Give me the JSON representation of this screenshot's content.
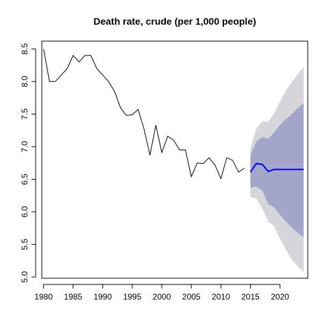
{
  "chart_data": {
    "type": "line",
    "title": "Death rate, crude (per 1,000 people)",
    "xlabel": "",
    "ylabel": "",
    "xlim": [
      1979.7,
      2024.7
    ],
    "ylim": [
      4.98,
      8.62
    ],
    "x_ticks": [
      1980,
      1985,
      1990,
      1995,
      2000,
      2005,
      2010,
      2015,
      2020
    ],
    "y_ticks": [
      5.0,
      5.5,
      6.0,
      6.5,
      7.0,
      7.5,
      8.0,
      8.5
    ],
    "y_tick_labels": [
      "5.0",
      "5.5",
      "6.0",
      "6.5",
      "7.0",
      "7.5",
      "8.0",
      "8.5"
    ],
    "grid": false,
    "colors": {
      "history": "#000000",
      "forecast": "#0000ff",
      "band80": "#a3a6c8",
      "band95": "#d5d5db"
    },
    "history": {
      "x": [
        1980,
        1981,
        1982,
        1983,
        1984,
        1985,
        1986,
        1987,
        1988,
        1989,
        1990,
        1991,
        1992,
        1993,
        1994,
        1995,
        1996,
        1997,
        1998,
        1999,
        2000,
        2001,
        2002,
        2003,
        2004,
        2005,
        2006,
        2007,
        2008,
        2009,
        2010,
        2011,
        2012,
        2013,
        2014
      ],
      "y": [
        8.5,
        8.0,
        8.0,
        8.1,
        8.2,
        8.4,
        8.3,
        8.4,
        8.4,
        8.2,
        8.1,
        8.0,
        7.85,
        7.6,
        7.48,
        7.49,
        7.57,
        7.27,
        6.87,
        7.33,
        6.91,
        7.16,
        7.1,
        6.95,
        6.95,
        6.54,
        6.75,
        6.74,
        6.83,
        6.72,
        6.51,
        6.83,
        6.79,
        6.61,
        6.67
      ]
    },
    "forecast": {
      "x": [
        2015,
        2016,
        2017,
        2018,
        2019,
        2020,
        2021,
        2022,
        2023,
        2024
      ],
      "mean": [
        6.61,
        6.74,
        6.73,
        6.62,
        6.65,
        6.65,
        6.65,
        6.65,
        6.65,
        6.65
      ],
      "lo80": [
        6.37,
        6.39,
        6.33,
        6.12,
        6.07,
        5.95,
        5.85,
        5.76,
        5.68,
        5.61
      ],
      "hi80": [
        6.87,
        7.08,
        7.15,
        7.12,
        7.22,
        7.33,
        7.42,
        7.5,
        7.59,
        7.67
      ],
      "lo95": [
        6.22,
        6.21,
        6.05,
        5.85,
        5.78,
        5.58,
        5.42,
        5.27,
        5.16,
        5.08
      ],
      "hi95": [
        6.98,
        7.28,
        7.39,
        7.38,
        7.51,
        7.69,
        7.86,
        7.99,
        8.11,
        8.22
      ]
    }
  }
}
